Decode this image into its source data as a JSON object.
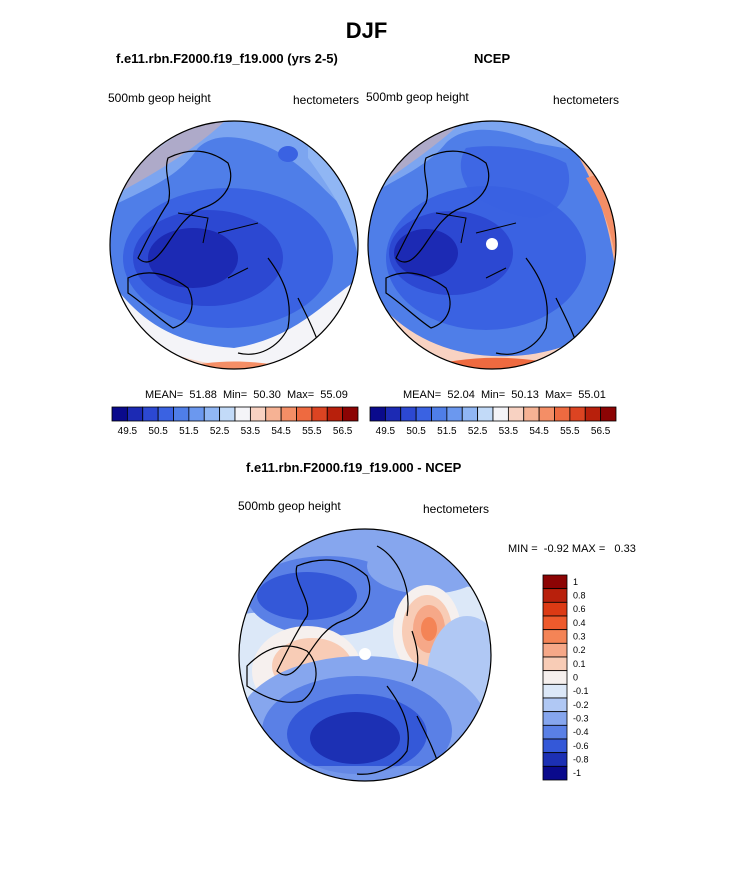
{
  "figure": {
    "title": "DJF"
  },
  "colors": {
    "land_line": "#000000",
    "pole_hole": "#ffffff"
  },
  "chart_data": [
    {
      "type": "heatmap",
      "projection": "polar-stereographic (north pole)",
      "title": "f.e11.rbn.F2000.f19_f19.000 (yrs 2-5)",
      "left_label": "500mb geop height",
      "right_label": "hectometers",
      "stats": {
        "mean_label": "MEAN=",
        "mean": "51.88",
        "min_label": "Min=",
        "min": "50.30",
        "max_label": "Max=",
        "max": "55.09"
      },
      "colorbar": {
        "orientation": "horizontal",
        "levels": [
          "49.5",
          "50",
          "50.5",
          "51",
          "51.5",
          "52",
          "52.5",
          "53",
          "53.5",
          "54",
          "54.5",
          "55",
          "55.5",
          "56",
          "56.5"
        ],
        "tick_labels": [
          "49.5",
          "50.5",
          "51.5",
          "52.5",
          "53.5",
          "54.5",
          "55.5",
          "56.5"
        ],
        "colors": [
          "#0a0a8c",
          "#1c2ab4",
          "#2c48d2",
          "#3a62e2",
          "#4f7ee8",
          "#6b98ef",
          "#90b6f4",
          "#c2daf8",
          "#f4f4f8",
          "#f8d2c2",
          "#f6b294",
          "#f48e66",
          "#ee6a40",
          "#dc4422",
          "#b8200c",
          "#8c0404"
        ]
      }
    },
    {
      "type": "heatmap",
      "projection": "polar-stereographic (north pole)",
      "title": "NCEP",
      "left_label": "500mb geop height",
      "right_label": "hectometers",
      "stats": {
        "mean_label": "MEAN=",
        "mean": "52.04",
        "min_label": "Min=",
        "min": "50.13",
        "max_label": "Max=",
        "max": "55.01"
      },
      "colorbar": {
        "orientation": "horizontal",
        "levels": [
          "49.5",
          "50",
          "50.5",
          "51",
          "51.5",
          "52",
          "52.5",
          "53",
          "53.5",
          "54",
          "54.5",
          "55",
          "55.5",
          "56",
          "56.5"
        ],
        "tick_labels": [
          "49.5",
          "50.5",
          "51.5",
          "52.5",
          "53.5",
          "54.5",
          "55.5",
          "56.5"
        ],
        "colors": [
          "#0a0a8c",
          "#1c2ab4",
          "#2c48d2",
          "#3a62e2",
          "#4f7ee8",
          "#6b98ef",
          "#90b6f4",
          "#c2daf8",
          "#f4f4f8",
          "#f8d2c2",
          "#f6b294",
          "#f48e66",
          "#ee6a40",
          "#dc4422",
          "#b8200c",
          "#8c0404"
        ]
      }
    },
    {
      "type": "heatmap",
      "projection": "polar-stereographic (north pole)",
      "title": "f.e11.rbn.F2000.f19_f19.000 - NCEP",
      "left_label": "500mb geop height",
      "right_label": "hectometers",
      "stats": {
        "min_label": "MIN =",
        "min": "-0.92",
        "max_label": "MAX =",
        "max": "0.33"
      },
      "colorbar": {
        "orientation": "vertical",
        "levels": [
          "1",
          "0.8",
          "0.6",
          "0.4",
          "0.3",
          "0.2",
          "0.1",
          "0",
          "-0.1",
          "-0.2",
          "-0.3",
          "-0.4",
          "-0.6",
          "-0.8",
          "-1"
        ],
        "colors": [
          "#8c0404",
          "#b8200c",
          "#dc3a14",
          "#ee5a2c",
          "#f48456",
          "#f6a888",
          "#f8ccb6",
          "#f6f0ee",
          "#dce8f8",
          "#b0c8f4",
          "#86a6ee",
          "#5a80e6",
          "#3458d8",
          "#1c30b4",
          "#0a0a8c"
        ]
      }
    }
  ]
}
